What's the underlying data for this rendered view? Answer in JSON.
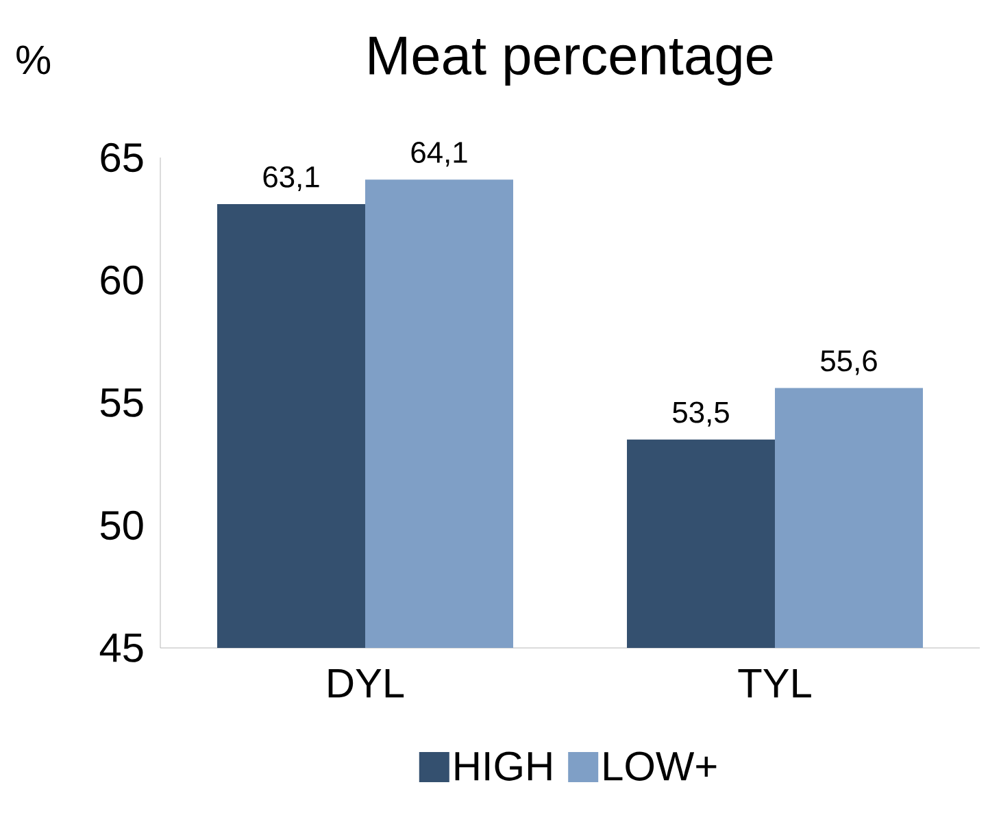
{
  "chart_data": {
    "type": "bar",
    "title": "Meat percentage",
    "ylabel": "%",
    "categories": [
      "DYL",
      "TYL"
    ],
    "series": [
      {
        "name": "HIGH",
        "color": "#34506f",
        "values": [
          63.1,
          53.5
        ],
        "value_labels": [
          "63,1",
          "53,5"
        ]
      },
      {
        "name": "LOW+",
        "color": "#7f9fc6",
        "values": [
          64.1,
          55.6
        ],
        "value_labels": [
          "64,1",
          "55,6"
        ]
      }
    ],
    "ylim": [
      45,
      65
    ],
    "yticks": [
      45,
      50,
      55,
      60,
      65
    ],
    "legend": "bottom"
  }
}
